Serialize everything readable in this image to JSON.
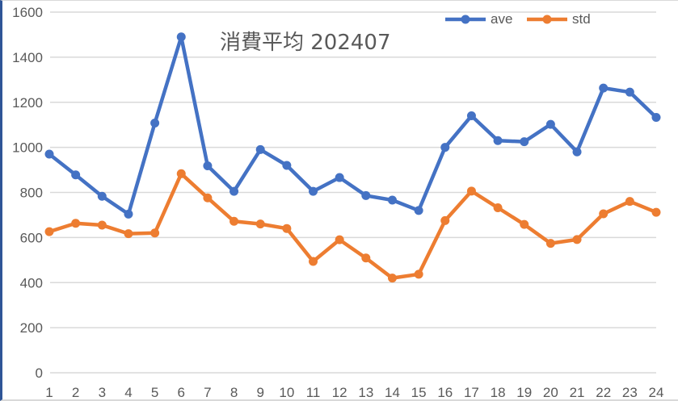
{
  "chart_data": {
    "type": "line",
    "title": "消費平均 202407",
    "xlabel": "",
    "ylabel": "",
    "x": [
      1,
      2,
      3,
      4,
      5,
      6,
      7,
      8,
      9,
      10,
      11,
      12,
      13,
      14,
      15,
      16,
      17,
      18,
      19,
      20,
      21,
      22,
      23,
      24
    ],
    "categories": [
      "1",
      "2",
      "3",
      "4",
      "5",
      "6",
      "7",
      "8",
      "9",
      "10",
      "11",
      "12",
      "13",
      "14",
      "15",
      "16",
      "17",
      "18",
      "19",
      "20",
      "21",
      "22",
      "23",
      "24"
    ],
    "ylim": [
      0,
      1600
    ],
    "yticks": [
      0,
      200,
      400,
      600,
      800,
      1000,
      1200,
      1400,
      1600
    ],
    "grid": true,
    "legend_position": "top-right",
    "series": [
      {
        "name": "ave",
        "color": "#4472c4",
        "values": [
          970,
          878,
          783,
          704,
          1108,
          1490,
          918,
          805,
          990,
          920,
          805,
          866,
          786,
          766,
          720,
          1000,
          1140,
          1030,
          1025,
          1102,
          980,
          1263,
          1245,
          1133
        ]
      },
      {
        "name": "std",
        "color": "#ed7d31",
        "values": [
          626,
          663,
          655,
          617,
          620,
          883,
          776,
          672,
          660,
          640,
          494,
          590,
          509,
          420,
          437,
          675,
          806,
          732,
          658,
          574,
          591,
          705,
          760,
          712
        ]
      }
    ]
  }
}
